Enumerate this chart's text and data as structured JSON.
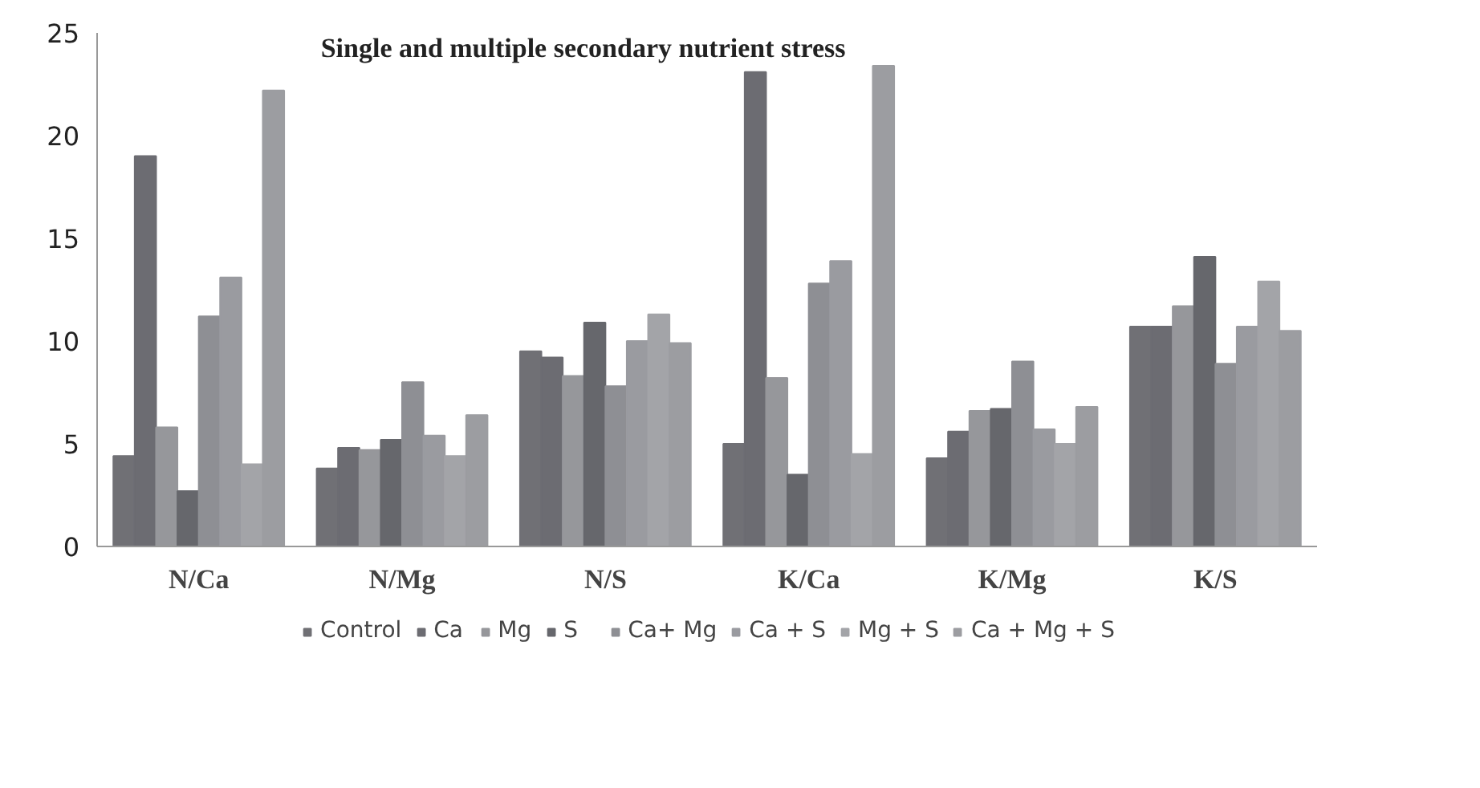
{
  "chart_data": {
    "type": "bar",
    "title": "Single and multiple secondary  nutrient stress",
    "categories": [
      "N/Ca",
      "N/Mg",
      "N/S",
      "K/Ca",
      "K/Mg",
      "K/S"
    ],
    "ylim": [
      0,
      25
    ],
    "yticks": [
      0,
      5,
      10,
      15,
      20,
      25
    ],
    "grid": false,
    "legend": "bottom",
    "series": [
      {
        "name": "Control",
        "color": "#707075",
        "values": [
          4.4,
          3.8,
          9.5,
          5.0,
          4.3,
          10.7
        ]
      },
      {
        "name": "Ca",
        "color": "#6c6c72",
        "values": [
          19.0,
          4.8,
          9.2,
          23.1,
          5.6,
          10.7
        ]
      },
      {
        "name": "Mg",
        "color": "#96979b",
        "values": [
          5.8,
          4.7,
          8.3,
          8.2,
          6.6,
          11.7
        ]
      },
      {
        "name": "S",
        "color": "#66676c",
        "values": [
          2.7,
          5.2,
          10.9,
          3.5,
          6.7,
          14.1
        ]
      },
      {
        "name": "Ca+ Mg",
        "color": "#8e8f94",
        "values": [
          11.2,
          8.0,
          7.8,
          12.8,
          9.0,
          8.9
        ]
      },
      {
        "name": "Ca + S",
        "color": "#9a9ba0",
        "values": [
          13.1,
          5.4,
          10.0,
          13.9,
          5.7,
          10.7
        ]
      },
      {
        "name": "Mg + S",
        "color": "#a3a4a8",
        "values": [
          4.0,
          4.4,
          11.3,
          4.5,
          5.0,
          12.9
        ]
      },
      {
        "name": "Ca + Mg + S",
        "color": "#9c9da1",
        "values": [
          22.2,
          6.4,
          9.9,
          23.4,
          6.8,
          10.5
        ]
      }
    ]
  }
}
